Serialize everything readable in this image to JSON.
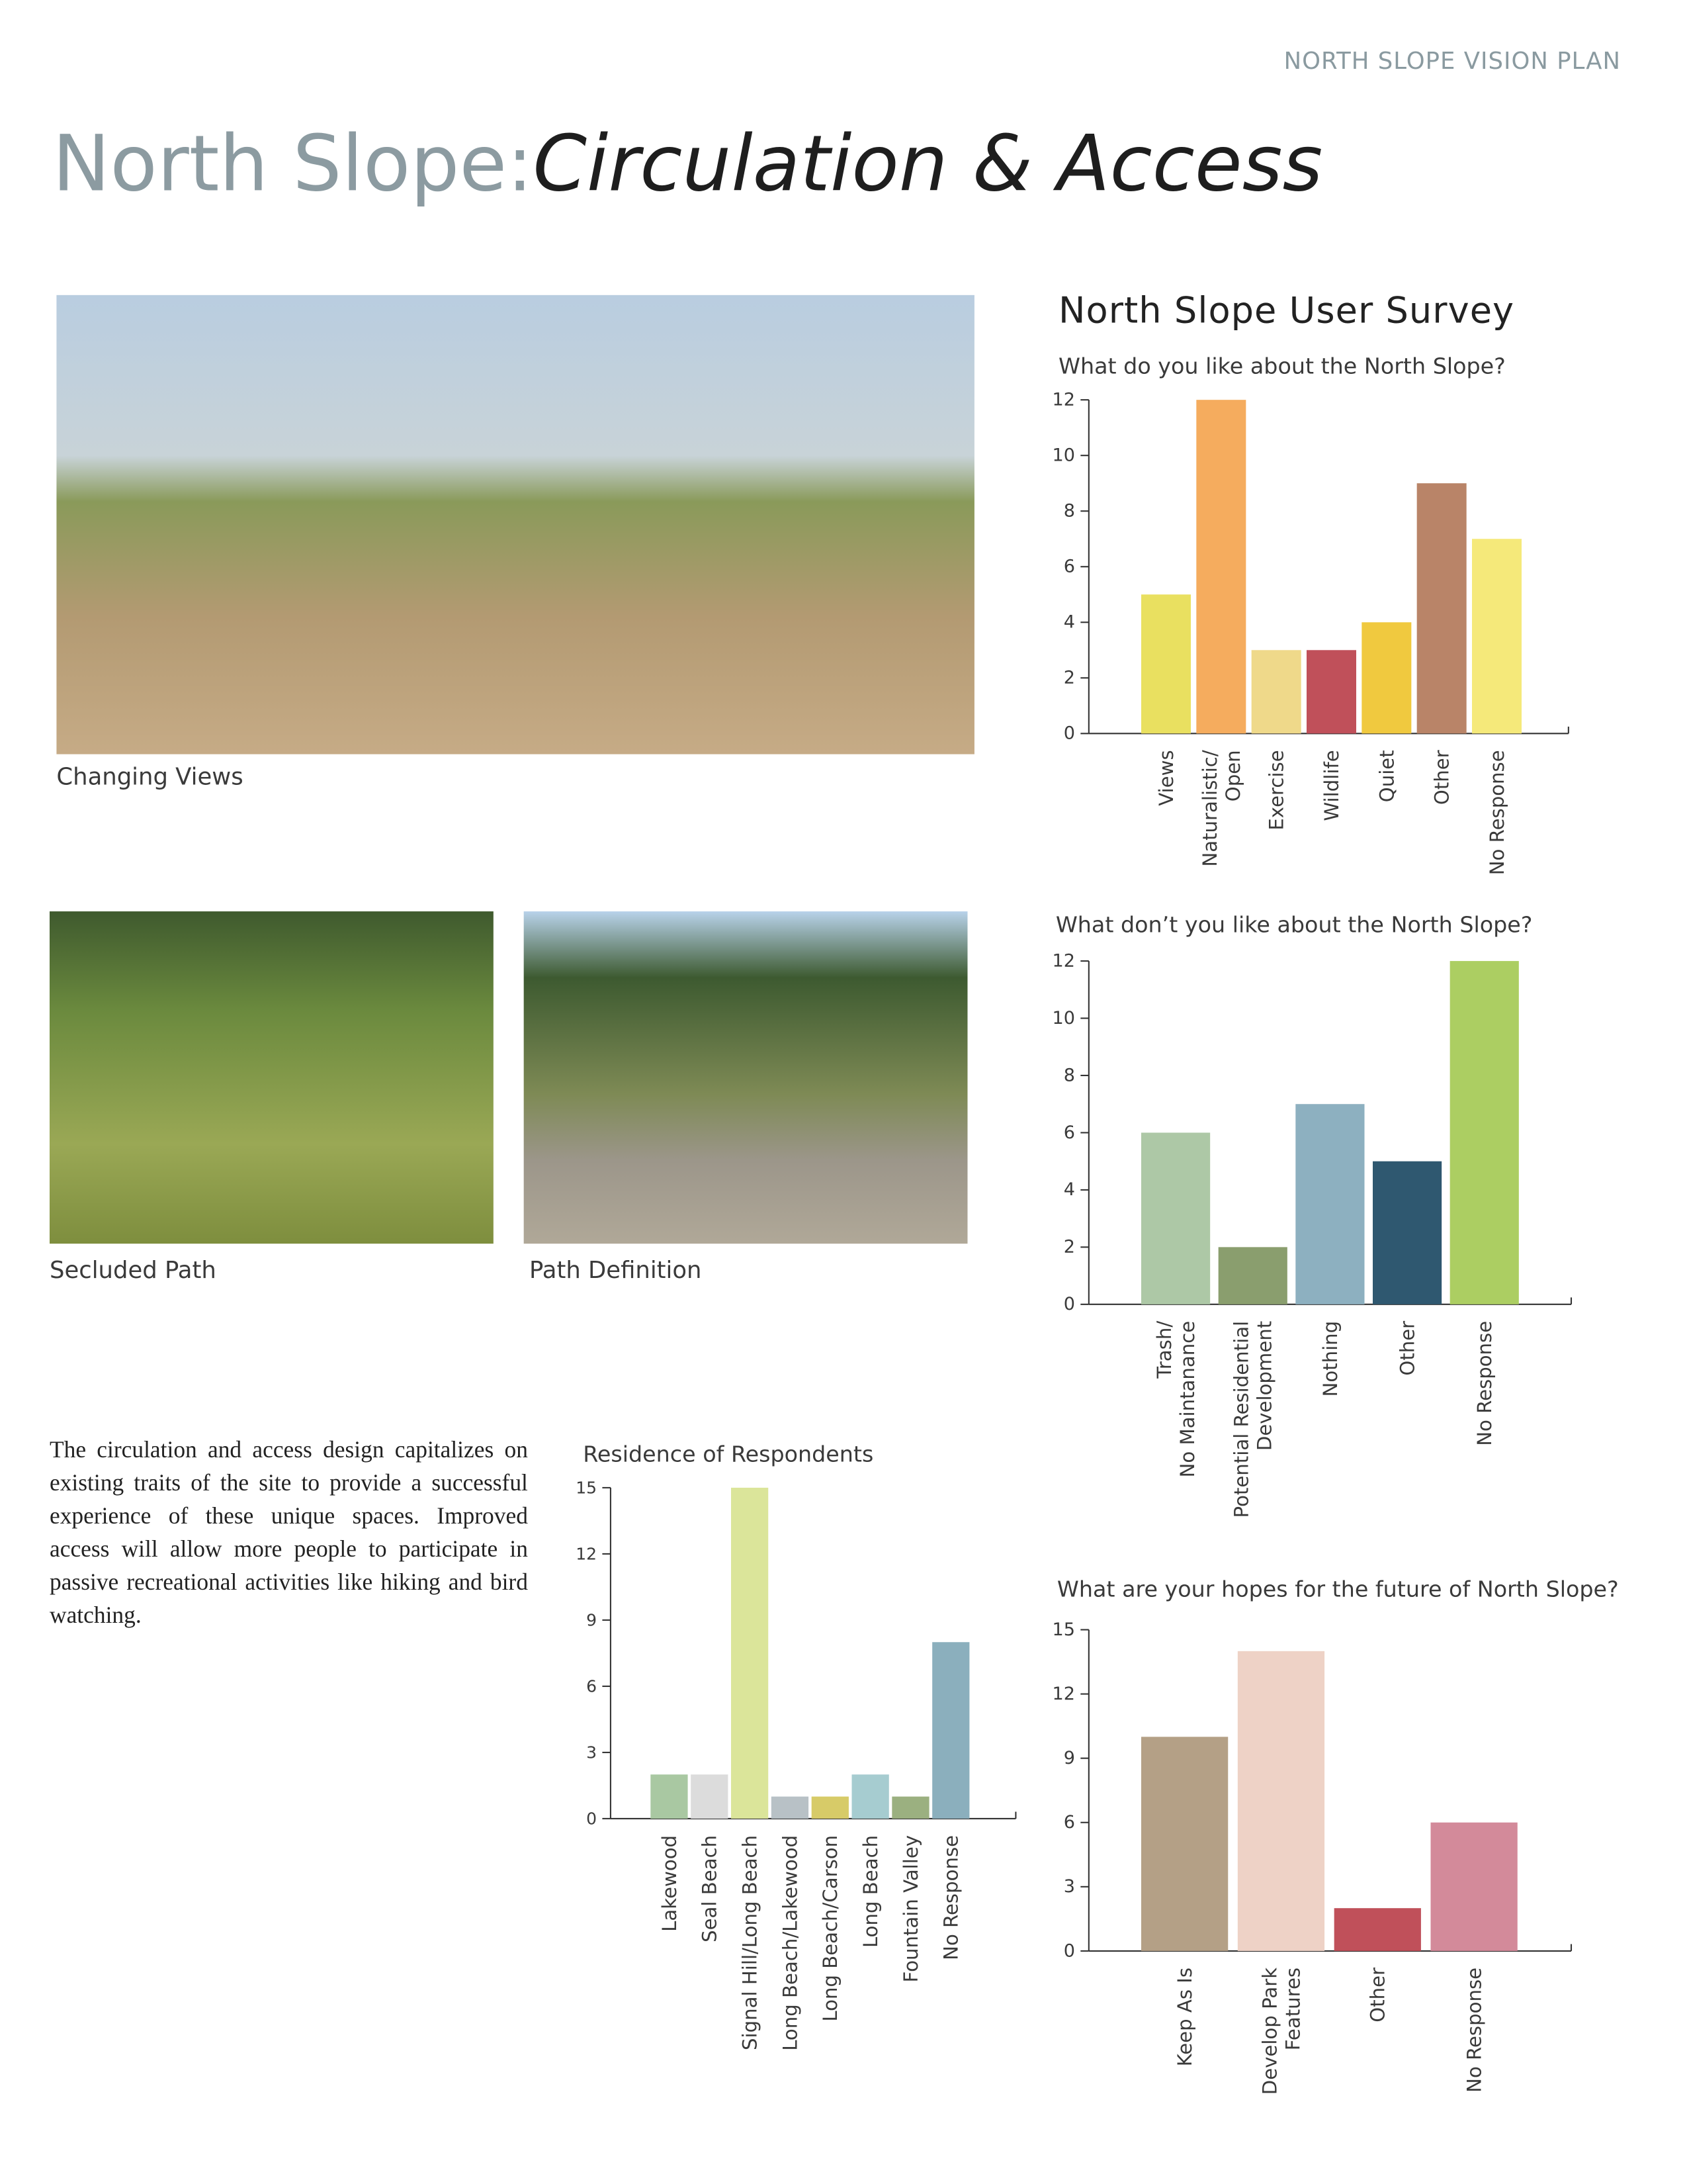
{
  "header": "NORTH SLOPE VISION PLAN",
  "title": {
    "prefix": "North Slope:",
    "main": "Circulation & Access"
  },
  "photos": [
    {
      "caption": "Changing Views"
    },
    {
      "caption": "Secluded Path"
    },
    {
      "caption": "Path Definition"
    }
  ],
  "paragraph": "The circulation and access design capitalizes on existing traits of the site to provide a successful experience of these unique spaces. Improved access will allow more people to participate in passive recreational activities like hiking and bird watching.",
  "survey_title": "North Slope User Survey",
  "chart_data": [
    {
      "type": "bar",
      "title": "What do you like about the North Slope?",
      "categories": [
        "Views",
        "Naturalistic/\nOpen",
        "Exercise",
        "Wildlife",
        "Quiet",
        "Other",
        "No Response"
      ],
      "values": [
        5,
        12,
        3,
        3,
        4,
        9,
        7
      ],
      "colors": [
        "#e9e060",
        "#f5ac5e",
        "#efd98a",
        "#c0505a",
        "#f0c93f",
        "#b98468",
        "#f5e97a"
      ],
      "ylim": [
        0,
        12
      ],
      "yticks": [
        0,
        2,
        4,
        6,
        8,
        10,
        12
      ]
    },
    {
      "type": "bar",
      "title": "What don’t you like about the North Slope?",
      "categories": [
        "Trash/\nNo Maintanance",
        "Potential Residential\nDevelopment",
        "Nothing",
        "Other",
        "No Response"
      ],
      "values": [
        6,
        2,
        7,
        5,
        12
      ],
      "colors": [
        "#adc8a6",
        "#8a9e6e",
        "#8db0c0",
        "#2f5870",
        "#acce62"
      ],
      "ylim": [
        0,
        12
      ],
      "yticks": [
        0,
        2,
        4,
        6,
        8,
        10,
        12
      ]
    },
    {
      "type": "bar",
      "title": "Residence of Respondents",
      "categories": [
        "Lakewood",
        "Seal Beach",
        "Signal Hill/Long Beach",
        "Long Beach/Lakewood",
        "Long Beach/Carson",
        "Long Beach",
        "Fountain Valley",
        "No Response"
      ],
      "values": [
        2,
        2,
        15,
        1,
        1,
        2,
        1,
        8
      ],
      "colors": [
        "#a9c8a2",
        "#dcdcdc",
        "#dbe59a",
        "#b8c1c6",
        "#d7cb68",
        "#a6ccd0",
        "#9bb080",
        "#8bafbd"
      ],
      "ylim": [
        0,
        15
      ],
      "yticks": [
        0,
        3,
        6,
        9,
        12,
        15
      ]
    },
    {
      "type": "bar",
      "title": "What are your hopes for the future of North Slope?",
      "categories": [
        "Keep As Is",
        "Develop Park\nFeatures",
        "Other",
        "No Response"
      ],
      "values": [
        10,
        14,
        2,
        6
      ],
      "colors": [
        "#b4a086",
        "#eed2c6",
        "#c0505a",
        "#d38a9a"
      ],
      "ylim": [
        0,
        15
      ],
      "yticks": [
        0,
        3,
        6,
        9,
        12,
        15
      ]
    }
  ]
}
